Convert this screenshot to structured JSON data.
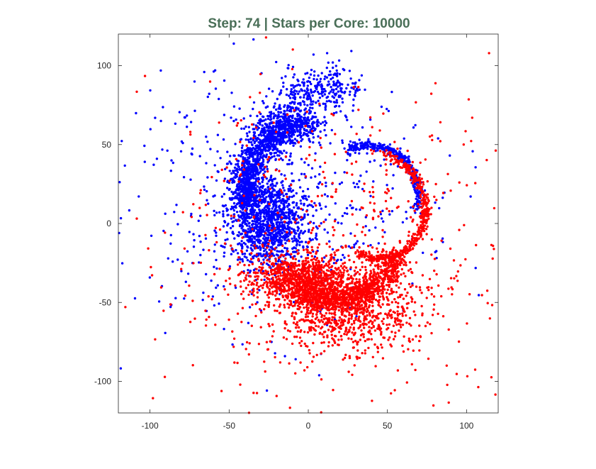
{
  "chart_data": {
    "type": "scatter",
    "title": "Step: 74 | Stars per Core: 10000",
    "title_color": "#4a6f58",
    "xlabel": "",
    "ylabel": "",
    "xlim": [
      -120,
      120
    ],
    "ylim": [
      -120,
      120
    ],
    "grid": false,
    "legend": "none",
    "x_ticks": [
      -100,
      -50,
      0,
      50,
      100
    ],
    "y_ticks": [
      -100,
      -50,
      0,
      50,
      100
    ],
    "x_tick_labels": [
      "-100",
      "-50",
      "0",
      "50",
      "100"
    ],
    "y_tick_labels": [
      "-100",
      "-50",
      "0",
      "50",
      "100"
    ],
    "series": [
      {
        "color": "#0000ff",
        "points_total": 10000,
        "structure": [
          {
            "kind": "blob",
            "cx": -25,
            "cy": 0,
            "rx": 22,
            "ry": 26,
            "weight": 0.3
          },
          {
            "kind": "arc",
            "cx": -5,
            "cy": 15,
            "r_start": 32,
            "r_end": 48,
            "a_start": 190,
            "a_end": 80,
            "spread": 10,
            "weight": 0.32
          },
          {
            "kind": "arc",
            "cx": 15,
            "cy": 30,
            "r_start": 48,
            "r_end": 58,
            "a_start": 150,
            "a_end": 80,
            "spread": 14,
            "weight": 0.12
          },
          {
            "kind": "arc",
            "cx": 35,
            "cy": 20,
            "r_start": 28,
            "r_end": 36,
            "a_start": 110,
            "a_end": -20,
            "spread": 3,
            "weight": 0.1
          },
          {
            "kind": "halo",
            "cx": -20,
            "cy": 20,
            "sigma": 45,
            "weight": 0.16
          }
        ]
      },
      {
        "color": "#ff0000",
        "points_total": 10000,
        "structure": [
          {
            "kind": "blob",
            "cx": -5,
            "cy": -35,
            "rx": 28,
            "ry": 14,
            "weight": 0.25
          },
          {
            "kind": "arc",
            "cx": 20,
            "cy": 0,
            "r_start": 50,
            "r_end": 42,
            "a_start": 240,
            "a_end": 330,
            "spread": 8,
            "weight": 0.22
          },
          {
            "kind": "arc",
            "cx": 40,
            "cy": 5,
            "r_start": 25,
            "r_end": 40,
            "a_start": 250,
            "a_end": 440,
            "spread": 3,
            "weight": 0.13
          },
          {
            "kind": "blob",
            "cx": 25,
            "cy": -55,
            "rx": 40,
            "ry": 22,
            "weight": 0.22
          },
          {
            "kind": "halo",
            "cx": 20,
            "cy": -20,
            "sigma": 55,
            "weight": 0.18
          }
        ]
      }
    ]
  }
}
